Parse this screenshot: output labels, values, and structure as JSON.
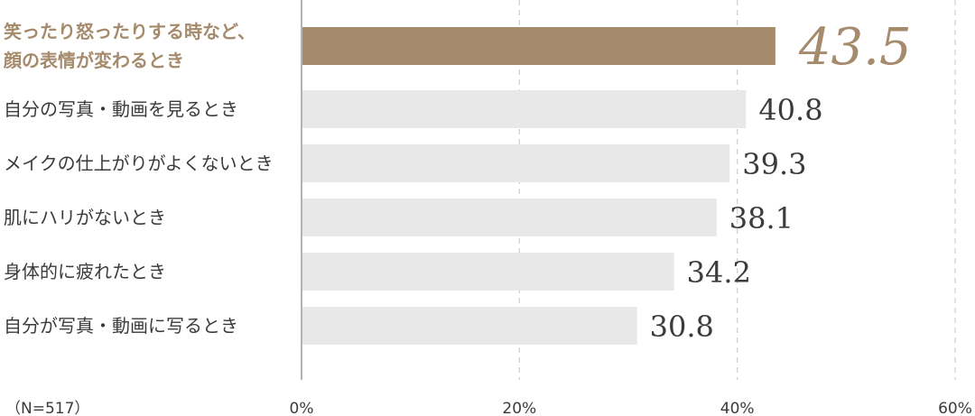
{
  "sample_note": "（N=517）",
  "chart_data": {
    "type": "bar",
    "orientation": "horizontal",
    "title": "",
    "xlabel": "",
    "ylabel": "",
    "xlim": [
      0,
      60
    ],
    "ticks": [
      0,
      20,
      40,
      60
    ],
    "tick_labels": [
      "0%",
      "20%",
      "40%",
      "60%"
    ],
    "grid": "vertical dashed",
    "categories": [
      [
        "笑ったり怒ったりする時など、",
        "顔の表情が変わるとき"
      ],
      [
        "自分の写真・動画を見るとき"
      ],
      [
        "メイクの仕上がりがよくないとき"
      ],
      [
        "肌にハリがないとき"
      ],
      [
        "身体的に疲れたとき"
      ],
      [
        "自分が写真・動画に写るとき"
      ]
    ],
    "values": [
      43.5,
      40.8,
      39.3,
      38.1,
      34.2,
      30.8
    ],
    "value_labels": [
      "43.5",
      "40.8",
      "39.3",
      "38.1",
      "34.2",
      "30.8"
    ],
    "highlight_index": 0,
    "colors": {
      "highlight": "#a58b6b",
      "bar": "#e8e8e8",
      "axis": "#9a9a9a",
      "grid": "#cfcfcf",
      "text": "#3b3b3b"
    }
  }
}
